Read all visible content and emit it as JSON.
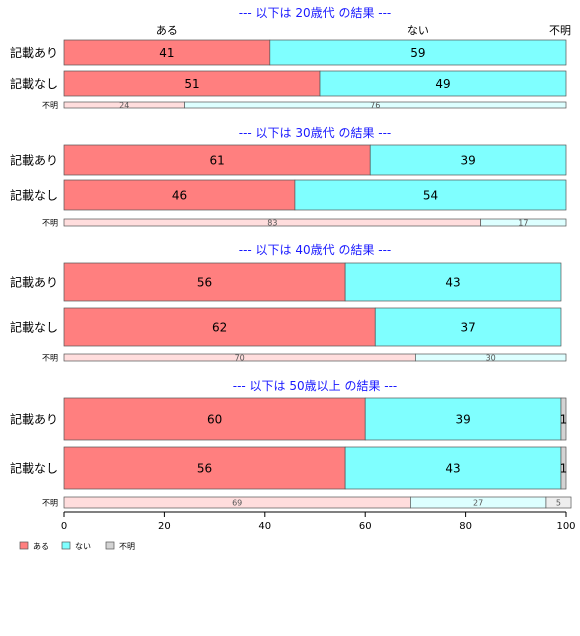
{
  "chart_data": {
    "type": "bar",
    "orientation": "horizontal",
    "stacked": true,
    "xlim": [
      0,
      100
    ],
    "x_ticks": [
      "0",
      "20",
      "40",
      "60",
      "80",
      "100"
    ],
    "column_headers": [
      "ある",
      "ない",
      "不明"
    ],
    "legend": {
      "position": "bottom-left",
      "entries": [
        "ある",
        "ない",
        "不明"
      ]
    },
    "colors": {
      "ある": "#ff7f7f",
      "ない": "#7fffff",
      "不明": "#d3d3d3",
      "ある_light": "#ffdddd",
      "ない_light": "#ddffff",
      "不明_light": "#eeeeee"
    },
    "panels": [
      {
        "title": "--- 以下は 20歳代 の結果 ---",
        "rows": [
          {
            "label": "記載あり",
            "values": [
              41,
              59,
              0
            ]
          },
          {
            "label": "記載なし",
            "values": [
              51,
              49,
              0
            ]
          },
          {
            "label": "不明",
            "values": [
              24,
              76,
              0
            ],
            "small": true
          }
        ]
      },
      {
        "title": "--- 以下は 30歳代 の結果 ---",
        "rows": [
          {
            "label": "記載あり",
            "values": [
              61,
              39,
              0
            ]
          },
          {
            "label": "記載なし",
            "values": [
              46,
              54,
              0
            ]
          },
          {
            "label": "不明",
            "values": [
              83,
              17,
              0
            ],
            "small": true
          }
        ]
      },
      {
        "title": "--- 以下は 40歳代 の結果 ---",
        "rows": [
          {
            "label": "記載あり",
            "values": [
              56,
              43,
              0
            ]
          },
          {
            "label": "記載なし",
            "values": [
              62,
              37,
              0
            ]
          },
          {
            "label": "不明",
            "values": [
              70,
              30,
              0
            ],
            "small": true
          }
        ]
      },
      {
        "title": "--- 以下は 50歳以上 の結果 ---",
        "rows": [
          {
            "label": "記載あり",
            "values": [
              60,
              39,
              1
            ]
          },
          {
            "label": "記載なし",
            "values": [
              56,
              43,
              1
            ]
          },
          {
            "label": "不明",
            "values": [
              69,
              27,
              5
            ],
            "small": true
          }
        ]
      }
    ]
  }
}
